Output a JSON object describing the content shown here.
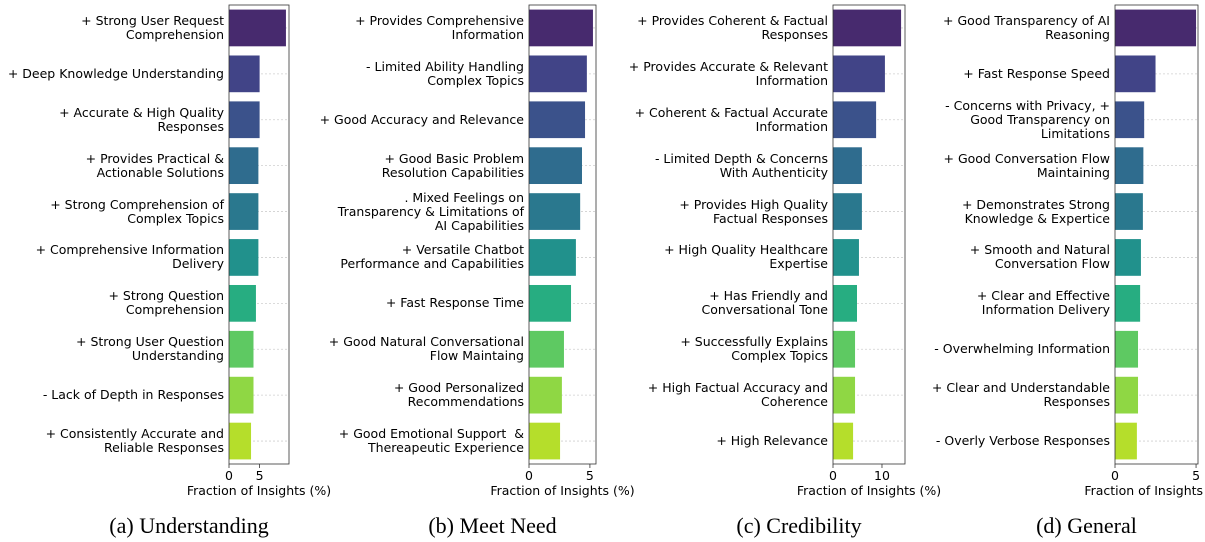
{
  "chart_data": [
    {
      "type": "barh",
      "caption": "(a) Understanding",
      "xlabel": "Fraction of Insights (%)",
      "grid": true,
      "categories": [
        "+ Strong User Request\nComprehension",
        "+ Deep Knowledge Understanding",
        "+ Accurate & High Quality\nResponses",
        "+ Provides Practical &\nActionable Solutions",
        "+ Strong Comprehension of\nComplex Topics",
        "+ Comprehensive Information\nDelivery",
        "+ Strong Question\nComprehension",
        "+ Strong User Question\nUnderstanding",
        "- Lack of Depth in Responses",
        "+ Consistently Accurate and\nReliable Responses"
      ],
      "values": [
        9.3,
        5.0,
        5.0,
        4.8,
        4.8,
        4.8,
        4.4,
        4.0,
        4.0,
        3.6
      ],
      "colors": [
        "#472a6e",
        "#414487",
        "#3b528b",
        "#2f6c8e",
        "#2a788e",
        "#21918c",
        "#27ad81",
        "#5ec962",
        "#8fd744",
        "#b5de2b"
      ],
      "xlim": [
        0,
        9.8
      ],
      "xticks": [
        0,
        5
      ]
    },
    {
      "type": "barh",
      "caption": "(b) Meet Need",
      "xlabel": "Fraction of Insights (%)",
      "grid": true,
      "categories": [
        "+ Provides Comprehensive\nInformation",
        "- Limited Ability Handling\nComplex Topics",
        "+ Good Accuracy and Relevance",
        "+ Good Basic Problem\nResolution Capabilities",
        ". Mixed Feelings on\nTransparency & Limitations of\nAI Capabilities",
        "+ Versatile Chatbot\nPerformance and Capabilities",
        "+ Fast Response Time",
        "+ Good Natural Conversational\nFlow Maintaing",
        "+ Good Personalized\nRecommendations",
        "+ Good Emotional Support  &\nThereapeutic Experience"
      ],
      "values": [
        5.25,
        4.75,
        4.6,
        4.35,
        4.2,
        3.85,
        3.45,
        2.87,
        2.7,
        2.55
      ],
      "colors": [
        "#472a6e",
        "#414487",
        "#3b528b",
        "#2f6c8e",
        "#2a788e",
        "#21918c",
        "#27ad81",
        "#5ec962",
        "#8fd744",
        "#b5de2b"
      ],
      "xlim": [
        0,
        5.5
      ],
      "xticks": [
        0,
        5
      ]
    },
    {
      "type": "barh",
      "caption": "(c) Credibility",
      "xlabel": "Fraction of Insights (%)",
      "grid": true,
      "categories": [
        "+ Provides Coherent & Factual\nResponses",
        "+ Provides Accurate & Relevant\nInformation",
        "+ Coherent & Factual Accurate\nInformation",
        "- Limited Depth & Concerns\nWith Authenticity",
        "+ Provides High Quality\nFactual Responses",
        "+ High Quality Healthcare\nExpertise",
        "+ Has Friendly and\nConversational Tone",
        "+ Successfully Explains\nComplex Topics",
        "+ High Factual Accuracy and\nCoherence",
        "+ High Relevance"
      ],
      "values": [
        13.9,
        10.6,
        8.8,
        5.9,
        5.9,
        5.3,
        4.9,
        4.5,
        4.5,
        4.1
      ],
      "colors": [
        "#472a6e",
        "#414487",
        "#3b528b",
        "#2f6c8e",
        "#2a788e",
        "#21918c",
        "#27ad81",
        "#5ec962",
        "#8fd744",
        "#b5de2b"
      ],
      "xlim": [
        0,
        14.7
      ],
      "xticks": [
        0,
        10
      ]
    },
    {
      "type": "barh",
      "caption": "(d) General",
      "xlabel": "Fraction of Insights (%)",
      "grid": true,
      "categories": [
        "+ Good Transparency of AI\nReasoning",
        "+ Fast Response Speed",
        "- Concerns with Privacy, +\nGood Transparency on\nLimitations",
        "+ Good Conversation Flow\nMaintaining",
        "+ Demonstrates Strong\nKnowledge & Expertice",
        "+ Smooth and Natural\nConversation Flow",
        "+ Clear and Effective\nInformation Delivery",
        "- Overwhelming Information",
        "+ Clear and Understandable\nResponses",
        "- Overly Verbose Responses"
      ],
      "values": [
        5.0,
        2.5,
        1.8,
        1.75,
        1.72,
        1.6,
        1.55,
        1.42,
        1.42,
        1.35
      ],
      "colors": [
        "#472a6e",
        "#414487",
        "#3b528b",
        "#2f6c8e",
        "#2a788e",
        "#21918c",
        "#27ad81",
        "#5ec962",
        "#8fd744",
        "#b5de2b"
      ],
      "xlim": [
        0,
        5.12
      ],
      "xticks": [
        0,
        5
      ]
    }
  ]
}
